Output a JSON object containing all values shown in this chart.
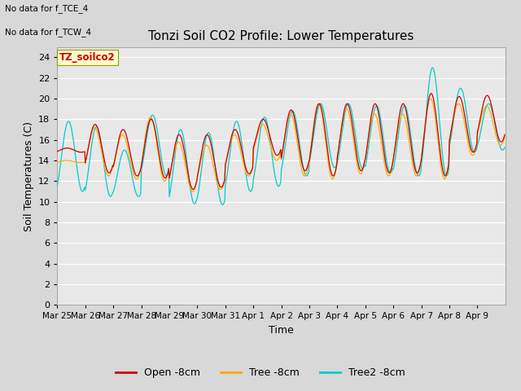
{
  "title": "Tonzi Soil CO2 Profile: Lower Temperatures",
  "xlabel": "Time",
  "ylabel": "Soil Temperatures (C)",
  "ylim": [
    0,
    25
  ],
  "yticks": [
    0,
    2,
    4,
    6,
    8,
    10,
    12,
    14,
    16,
    18,
    20,
    22,
    24
  ],
  "bg_color": "#e8e8e8",
  "fig_bg_color": "#d8d8d8",
  "line_colors": {
    "open": "#cc0000",
    "tree": "#ffaa00",
    "tree2": "#00cccc"
  },
  "legend_labels": [
    "Open -8cm",
    "Tree -8cm",
    "Tree2 -8cm"
  ],
  "top_left_text": [
    "No data for f_TCE_4",
    "No data for f_TCW_4"
  ],
  "watermark_text": "TZ_soilco2",
  "watermark_color": "#cc0000",
  "watermark_bg": "#ffffcc",
  "x_tick_labels": [
    "Mar 25",
    "Mar 26",
    "Mar 27",
    "Mar 28",
    "Mar 29",
    "Mar 30",
    "Mar 31",
    "Apr 1",
    "Apr 2",
    "Apr 3",
    "Apr 4",
    "Apr 5",
    "Apr 6",
    "Apr 7",
    "Apr 8",
    "Apr 9"
  ],
  "n_days": 16,
  "points_per_day": 48,
  "open_base_min": [
    14.8,
    12.8,
    12.5,
    12.3,
    11.2,
    11.4,
    12.7,
    14.5,
    13.0,
    12.5,
    13.0,
    12.8,
    12.8,
    12.5,
    14.8,
    15.8
  ],
  "open_base_max": [
    15.2,
    17.5,
    17.0,
    18.0,
    16.5,
    16.5,
    17.0,
    18.0,
    18.9,
    19.5,
    19.5,
    19.5,
    19.5,
    20.5,
    20.2,
    20.3
  ],
  "tree_base_min": [
    13.8,
    12.5,
    12.2,
    12.0,
    11.0,
    11.2,
    12.5,
    14.0,
    12.5,
    12.2,
    12.7,
    12.5,
    12.5,
    12.2,
    14.5,
    15.5
  ],
  "tree_base_max": [
    14.0,
    17.2,
    16.5,
    18.2,
    15.8,
    15.5,
    16.5,
    17.5,
    18.5,
    19.5,
    19.0,
    18.5,
    18.5,
    20.0,
    19.5,
    19.3
  ],
  "tree2_base_min": [
    11.0,
    10.5,
    10.5,
    12.5,
    9.8,
    9.7,
    11.0,
    11.5,
    12.5,
    13.3,
    13.2,
    12.8,
    12.5,
    12.5,
    14.8,
    15.0
  ],
  "tree2_base_max": [
    17.8,
    17.3,
    15.0,
    18.4,
    17.0,
    16.7,
    17.8,
    18.2,
    18.8,
    19.5,
    19.5,
    19.3,
    19.3,
    23.0,
    21.0,
    19.5
  ]
}
